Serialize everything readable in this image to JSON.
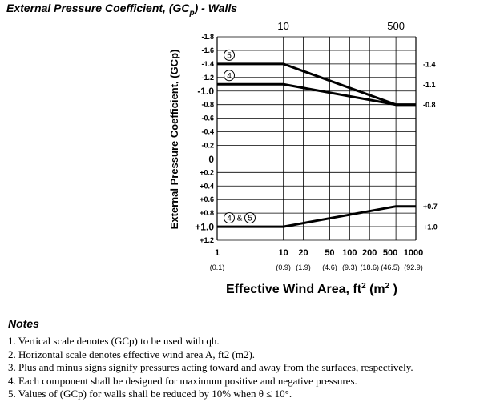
{
  "chart_data": {
    "type": "line",
    "title_main": "External Pressure Coefficient, (GC",
    "title_sub": "p",
    "title_tail": ") - Walls",
    "ylabel": "External Pressure Coefficient, (GCp)",
    "xlabel_main": "Effective Wind Area, ft",
    "xlabel_sup": "2",
    "xlabel_unit": " (m",
    "xlabel_unit_sup": "2",
    "xlabel_close": " )",
    "x_scale": "log",
    "xlim": [
      1,
      1000
    ],
    "ylim": [
      -1.8,
      1.2
    ],
    "y_inverted": true,
    "grid": true,
    "y_ticks": [
      {
        "value": -1.8,
        "label": "-1.8"
      },
      {
        "value": -1.6,
        "label": "-1.6"
      },
      {
        "value": -1.4,
        "label": "-1.4"
      },
      {
        "value": -1.2,
        "label": "-1.2"
      },
      {
        "value": -1.0,
        "label": "-1.0"
      },
      {
        "value": -0.8,
        "label": "-0.8"
      },
      {
        "value": -0.6,
        "label": "-0.6"
      },
      {
        "value": -0.4,
        "label": "-0.4"
      },
      {
        "value": -0.2,
        "label": "-0.2"
      },
      {
        "value": 0,
        "label": "0"
      },
      {
        "value": 0.2,
        "label": "+0.2"
      },
      {
        "value": 0.4,
        "label": "+0.4"
      },
      {
        "value": 0.6,
        "label": "+0.6"
      },
      {
        "value": 0.8,
        "label": "+0.8"
      },
      {
        "value": 1.0,
        "label": "+1.0"
      },
      {
        "value": 1.2,
        "label": "+1.2"
      }
    ],
    "x_ticks": [
      {
        "value": 1,
        "label": "1",
        "sub": "(0.1)"
      },
      {
        "value": 10,
        "label": "10",
        "sub": "(0.9)"
      },
      {
        "value": 20,
        "label": "20",
        "sub": "(1.9)"
      },
      {
        "value": 50,
        "label": "50",
        "sub": "(4.6)"
      },
      {
        "value": 100,
        "label": "100",
        "sub": "(9.3)"
      },
      {
        "value": 200,
        "label": "200",
        "sub": "(18.6)"
      },
      {
        "value": 500,
        "label": "500",
        "sub": "(46.5)"
      },
      {
        "value": 1000,
        "label": "1000",
        "sub": "(92.9)"
      }
    ],
    "top_ticks": [
      {
        "value": 10,
        "label": "10"
      },
      {
        "value": 500,
        "label": "500"
      }
    ],
    "right_labels": [
      {
        "value": -1.4,
        "label": "-1.4"
      },
      {
        "value": -1.1,
        "label": "-1.1"
      },
      {
        "value": -0.8,
        "label": "-0.8"
      },
      {
        "value": 0.7,
        "label": "+0.7"
      },
      {
        "value": 1.0,
        "label": "+1.0"
      }
    ],
    "series": [
      {
        "name": "5",
        "x": [
          1,
          10,
          500,
          1000
        ],
        "y": [
          -1.4,
          -1.4,
          -0.8,
          -0.8
        ]
      },
      {
        "name": "4",
        "x": [
          1,
          10,
          500,
          1000
        ],
        "y": [
          -1.1,
          -1.1,
          -0.8,
          -0.8
        ]
      },
      {
        "name": "4 & 5",
        "x": [
          1,
          10,
          500,
          1000
        ],
        "y": [
          1.0,
          1.0,
          0.7,
          0.7
        ]
      }
    ],
    "zone_labels": [
      {
        "zones": [
          "5"
        ],
        "amp": "",
        "x": 1,
        "y": -1.4
      },
      {
        "zones": [
          "4"
        ],
        "amp": "",
        "x": 1,
        "y": -1.1
      },
      {
        "zones": [
          "4",
          "5"
        ],
        "amp": "&",
        "x": 1,
        "y": 1.0
      }
    ]
  },
  "notes": {
    "title": "Notes",
    "lines": [
      "1. Vertical scale denotes (GCp) to be used with qh.",
      "2. Horizontal scale denotes effective wind area A, ft2 (m2).",
      "3. Plus and minus signs signify pressures acting toward and away from the surfaces, respectively.",
      "4. Each component shall be designed for maximum positive and negative pressures.",
      "5. Values of (GCp) for walls shall be reduced by 10% when θ ≤ 10°."
    ]
  }
}
